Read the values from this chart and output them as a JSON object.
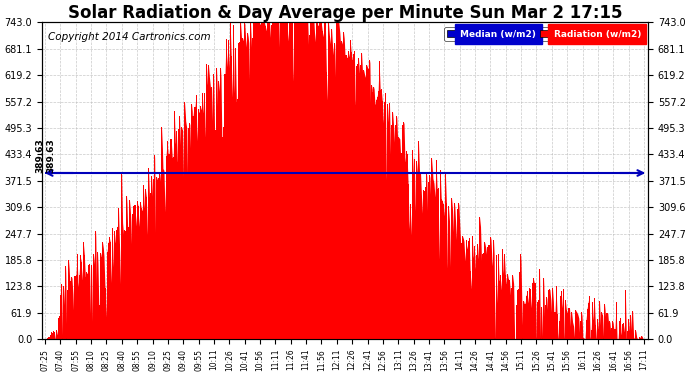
{
  "title": "Solar Radiation & Day Average per Minute Sun Mar 2 17:15",
  "copyright": "Copyright 2014 Cartronics.com",
  "median_value": 389.63,
  "y_max": 743.0,
  "y_min": 0.0,
  "y_ticks": [
    0.0,
    61.9,
    123.8,
    185.8,
    247.7,
    309.6,
    371.5,
    433.4,
    495.3,
    557.2,
    619.2,
    681.1,
    743.0
  ],
  "bar_color": "#FF0000",
  "median_color": "#0000BB",
  "background_color": "#FFFFFF",
  "grid_color": "#BBBBBB",
  "legend_median_bg": "#0000CC",
  "legend_radiation_bg": "#FF0000",
  "title_fontsize": 12,
  "copyright_fontsize": 7.5,
  "x_tick_labels": [
    "07:25",
    "07:40",
    "07:55",
    "08:10",
    "08:25",
    "08:40",
    "08:55",
    "09:10",
    "09:25",
    "09:40",
    "09:55",
    "10:11",
    "10:26",
    "10:41",
    "10:56",
    "11:11",
    "11:26",
    "11:41",
    "11:56",
    "12:11",
    "12:26",
    "12:41",
    "12:56",
    "13:11",
    "13:26",
    "13:41",
    "13:56",
    "14:11",
    "14:26",
    "14:41",
    "14:56",
    "15:11",
    "15:26",
    "15:41",
    "15:56",
    "16:11",
    "16:26",
    "16:41",
    "16:56",
    "17:11"
  ],
  "num_bars": 580,
  "peak_t": 0.41,
  "sigma": 0.185
}
